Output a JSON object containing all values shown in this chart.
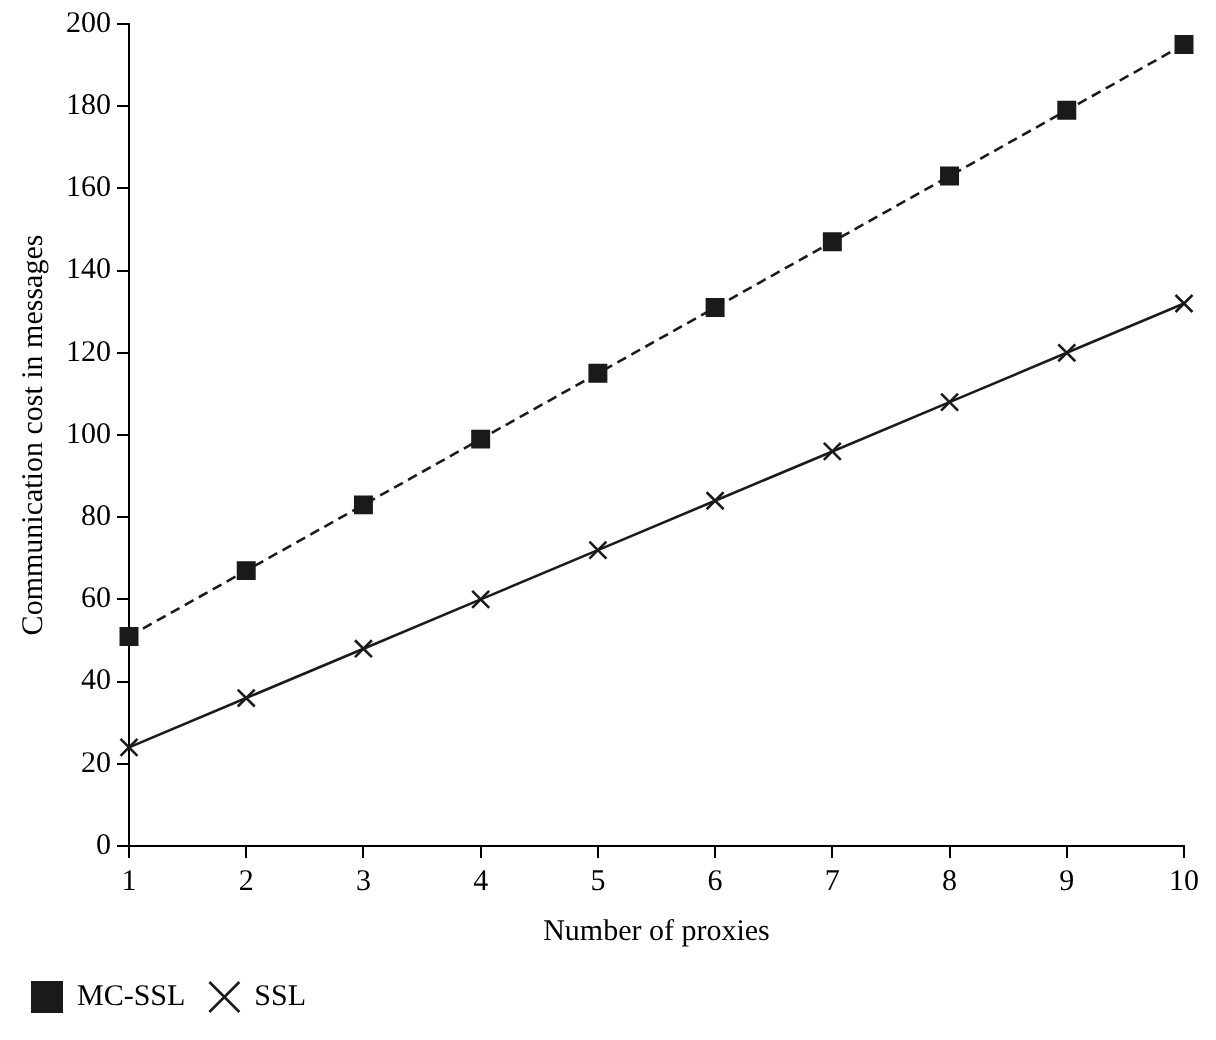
{
  "chart_data": {
    "type": "line",
    "xlabel": "Number of proxies",
    "ylabel": "Communication cost in messages",
    "x": [
      1,
      2,
      3,
      4,
      5,
      6,
      7,
      8,
      9,
      10
    ],
    "series": [
      {
        "name": "MC-SSL",
        "color": "#1a1a1a",
        "marker": "square",
        "line_style": "dashed",
        "values": [
          51,
          67,
          83,
          99,
          115,
          131,
          147,
          163,
          179,
          195
        ]
      },
      {
        "name": "SSL",
        "color": "#1a1a1a",
        "marker": "cross",
        "line_style": "solid",
        "values": [
          24,
          36,
          48,
          60,
          72,
          84,
          96,
          108,
          120,
          132
        ]
      }
    ],
    "xlim": [
      1,
      10
    ],
    "xticks": [
      1,
      2,
      3,
      4,
      5,
      6,
      7,
      8,
      9,
      10
    ],
    "ylim": [
      0,
      200
    ],
    "yticks": [
      0,
      20,
      40,
      60,
      80,
      100,
      120,
      140,
      160,
      180,
      200
    ],
    "grid": false,
    "legend": "bottom left"
  }
}
